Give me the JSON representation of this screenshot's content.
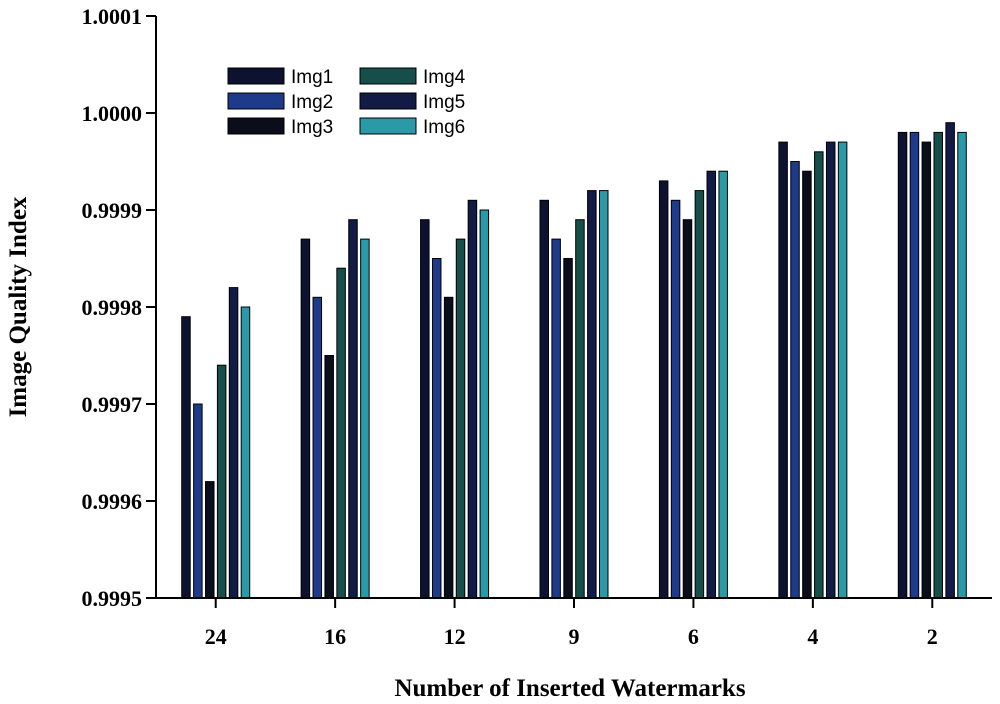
{
  "chart_data": {
    "type": "bar",
    "title": "",
    "xlabel": "Number of Inserted Watermarks",
    "ylabel": "Image Quality Index",
    "categories": [
      "24",
      "16",
      "12",
      "9",
      "6",
      "4",
      "2"
    ],
    "ylim": [
      0.9995,
      1.0001
    ],
    "yticks": [
      0.9995,
      0.9996,
      0.9997,
      0.9998,
      0.9999,
      1.0,
      1.0001
    ],
    "ytick_labels": [
      "0.9995",
      "0.9996",
      "0.9997",
      "0.9998",
      "0.9999",
      "1.0000",
      "1.0001"
    ],
    "grid": false,
    "legend_position": "top-left",
    "series": [
      {
        "name": "Img1",
        "color": "#0d1230",
        "values": [
          0.99979,
          0.99987,
          0.99989,
          0.99991,
          0.99993,
          0.99997,
          0.99998
        ]
      },
      {
        "name": "Img2",
        "color": "#1e3a8a",
        "values": [
          0.9997,
          0.99981,
          0.99985,
          0.99987,
          0.99991,
          0.99995,
          0.99998
        ]
      },
      {
        "name": "Img3",
        "color": "#0a0d1a",
        "values": [
          0.99962,
          0.99975,
          0.99981,
          0.99985,
          0.99989,
          0.99994,
          0.99997
        ]
      },
      {
        "name": "Img4",
        "color": "#164e4a",
        "values": [
          0.99974,
          0.99984,
          0.99987,
          0.99989,
          0.99992,
          0.99996,
          0.99998
        ]
      },
      {
        "name": "Img5",
        "color": "#111b45",
        "values": [
          0.99982,
          0.99989,
          0.99991,
          0.99992,
          0.99994,
          0.99997,
          0.99999
        ]
      },
      {
        "name": "Img6",
        "color": "#2b9aa8",
        "values": [
          0.9998,
          0.99987,
          0.9999,
          0.99992,
          0.99994,
          0.99997,
          0.99998
        ]
      }
    ]
  }
}
